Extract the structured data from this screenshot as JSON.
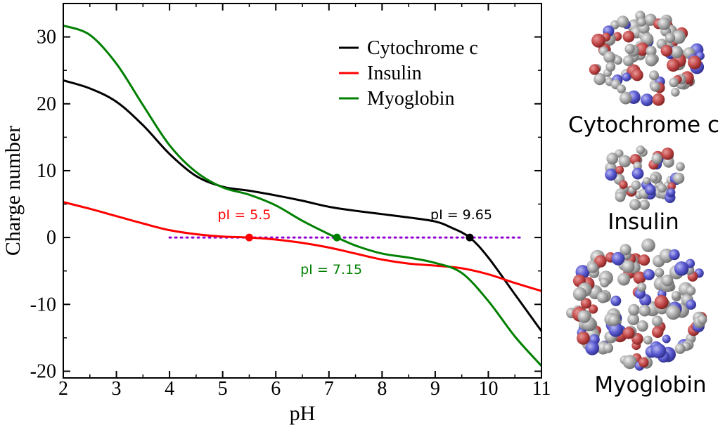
{
  "chart_data": {
    "type": "line",
    "xlabel": "pH",
    "ylabel": "Charge number",
    "xlim": [
      2,
      11
    ],
    "ylim": [
      -21,
      35
    ],
    "xticks": [
      2,
      3,
      4,
      5,
      6,
      7,
      8,
      9,
      10,
      11
    ],
    "yticks": [
      -20,
      -10,
      0,
      10,
      20,
      30
    ],
    "legend_position": "top-right",
    "series": [
      {
        "name": "Cytochrome c",
        "color": "#000000",
        "x": [
          2,
          2.5,
          3,
          3.5,
          4,
          4.5,
          5,
          5.5,
          6,
          6.5,
          7,
          7.5,
          8,
          8.5,
          9,
          9.3,
          9.65,
          10,
          10.5,
          11
        ],
        "y": [
          23.5,
          22.3,
          20.3,
          16.8,
          12.5,
          9.2,
          7.6,
          7.0,
          6.3,
          5.5,
          4.6,
          4.0,
          3.5,
          3.0,
          2.4,
          1.5,
          0,
          -3.0,
          -8.5,
          -14.0
        ]
      },
      {
        "name": "Insulin",
        "color": "#ff0000",
        "x": [
          2,
          2.5,
          3,
          3.5,
          4,
          4.5,
          5,
          5.5,
          6,
          6.5,
          7,
          7.5,
          8,
          8.5,
          9,
          9.5,
          10,
          10.5,
          11
        ],
        "y": [
          5.3,
          4.3,
          3.2,
          2.1,
          1.1,
          0.5,
          0.15,
          0,
          -0.3,
          -0.8,
          -1.5,
          -2.4,
          -3.3,
          -3.9,
          -4.2,
          -4.6,
          -5.5,
          -6.8,
          -8.0
        ]
      },
      {
        "name": "Myoglobin",
        "color": "#008000",
        "x": [
          2,
          2.5,
          3,
          3.5,
          4,
          4.5,
          5,
          5.5,
          6,
          6.5,
          7,
          7.15,
          7.5,
          8,
          8.5,
          9,
          9.5,
          10,
          10.5,
          11
        ],
        "y": [
          31.7,
          30.3,
          26.0,
          19.8,
          13.8,
          9.8,
          7.5,
          6.4,
          4.8,
          2.5,
          0.5,
          0,
          -1.2,
          -2.4,
          -3.0,
          -3.8,
          -5.3,
          -9.5,
          -14.8,
          -19.2
        ]
      }
    ],
    "reference_line": {
      "y": 0,
      "x_from": 4,
      "x_to": 10.6,
      "color": "#9400d3",
      "style": "dotted"
    },
    "annotations": [
      {
        "text": "pI =  5.5",
        "x": 5.5,
        "y": 0,
        "color": "#ff0000"
      },
      {
        "text": "pI =  7.15",
        "x": 7.15,
        "y": 0,
        "color": "#008000"
      },
      {
        "text": "pI = 9.65",
        "x": 9.65,
        "y": 0,
        "color": "#000000"
      }
    ]
  },
  "molecules": [
    {
      "label": "Cytochrome c",
      "color": "#000000"
    },
    {
      "label": "Insulin",
      "color": "#ff0000"
    },
    {
      "label": "Myoglobin",
      "color": "#008000"
    }
  ]
}
